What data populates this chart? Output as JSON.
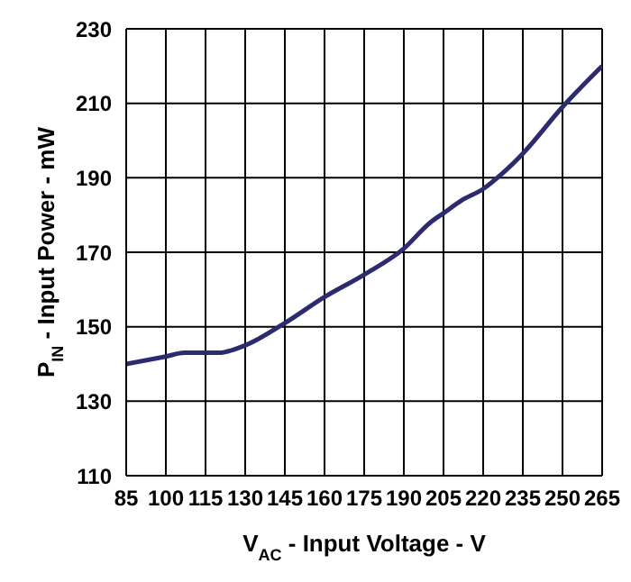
{
  "chart_data": {
    "type": "line",
    "xlabel": "V$_{AC}$ - Input Voltage - V",
    "ylabel": "P$_{IN}$ - Input Power - mW",
    "x": [
      85,
      100,
      107,
      120,
      130,
      145,
      160,
      175,
      190,
      200,
      205,
      212,
      220,
      227,
      235,
      250,
      265
    ],
    "series": [
      {
        "color": "#2b2b6e",
        "values": [
          140,
          142,
          143,
          143,
          145,
          151,
          158,
          164,
          171,
          178,
          180.5,
          184,
          187,
          191,
          196.5,
          209,
          220
        ]
      }
    ],
    "xlim": [
      85,
      265
    ],
    "xticks": [
      85,
      100,
      115,
      130,
      145,
      160,
      175,
      190,
      205,
      220,
      235,
      250,
      265
    ],
    "ylim": [
      110,
      230
    ],
    "yticks": [
      110,
      130,
      150,
      170,
      190,
      210,
      230
    ],
    "grid": true,
    "marker": "none",
    "line_style": "solid",
    "legend": false
  }
}
